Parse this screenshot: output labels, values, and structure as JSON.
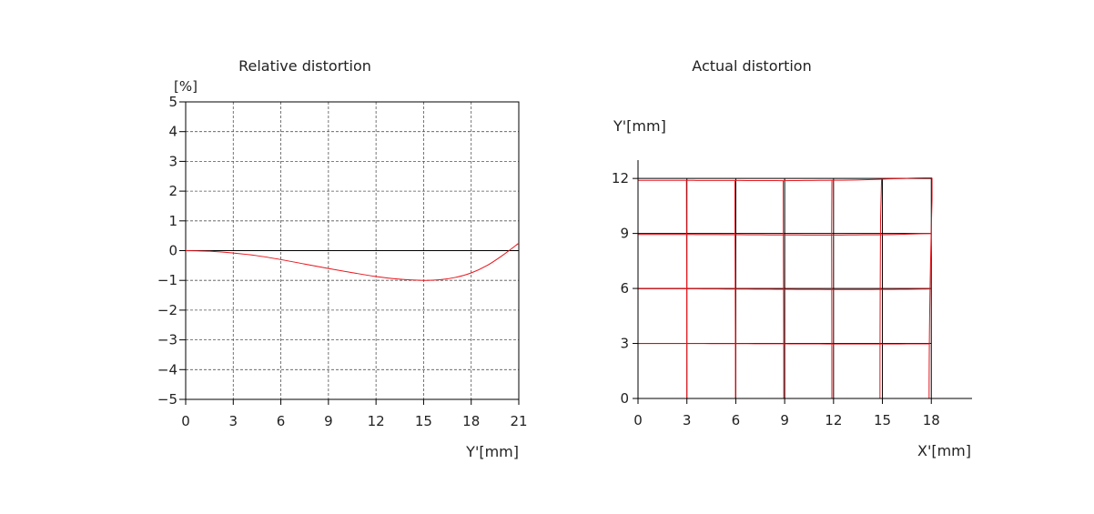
{
  "chart_data": [
    {
      "type": "line",
      "title": "Relative distortion",
      "xlabel": "Y'[mm]",
      "ylabel": "[%]",
      "xlim": [
        0,
        21
      ],
      "ylim": [
        -5,
        5
      ],
      "x_ticks": [
        0,
        3,
        6,
        9,
        12,
        15,
        18,
        21
      ],
      "y_ticks": [
        5,
        4,
        3,
        2,
        1,
        0,
        -1,
        -2,
        -3,
        -4,
        -5
      ],
      "x_tick_labels": [
        "0",
        "3",
        "6",
        "9",
        "12",
        "15",
        "18",
        "21"
      ],
      "y_tick_labels": [
        "5",
        "4",
        "3",
        "2",
        "1",
        "0",
        "−1",
        "−2",
        "−3",
        "−4",
        "−5"
      ],
      "grid": true,
      "line_color": "#e8141b",
      "series": [
        {
          "x": [
            0,
            1.5,
            3,
            4.5,
            6,
            7.5,
            9,
            10.5,
            12,
            13.5,
            15,
            16,
            17,
            18,
            19,
            20,
            21
          ],
          "y": [
            0,
            -0.02,
            -0.08,
            -0.17,
            -0.3,
            -0.45,
            -0.6,
            -0.74,
            -0.87,
            -0.96,
            -1.0,
            -0.98,
            -0.9,
            -0.75,
            -0.5,
            -0.15,
            0.25
          ]
        }
      ]
    },
    {
      "type": "line",
      "title": "Actual distortion",
      "xlabel": "X'[mm]",
      "ylabel": "Y'[mm]",
      "xlim": [
        0,
        20.5
      ],
      "ylim": [
        0,
        13
      ],
      "x_ticks": [
        0,
        3,
        6,
        9,
        12,
        15,
        18
      ],
      "y_ticks": [
        0,
        3,
        6,
        9,
        12
      ],
      "x_tick_labels": [
        "0",
        "3",
        "6",
        "9",
        "12",
        "15",
        "18"
      ],
      "y_tick_labels": [
        "0",
        "3",
        "6",
        "9",
        "12"
      ],
      "grid_values_x": [
        3,
        6,
        9,
        12,
        15,
        18
      ],
      "grid_values_y": [
        3,
        6,
        9,
        12
      ],
      "ideal_grid_color": "#000000",
      "distorted_grid_color": "#e8141b",
      "distortion_percent": {
        "x": [
          0,
          3,
          6,
          9,
          12,
          15,
          18,
          21
        ],
        "y": [
          0,
          -0.08,
          -0.3,
          -0.6,
          -0.87,
          -1.0,
          -0.75,
          0.25
        ]
      }
    }
  ]
}
